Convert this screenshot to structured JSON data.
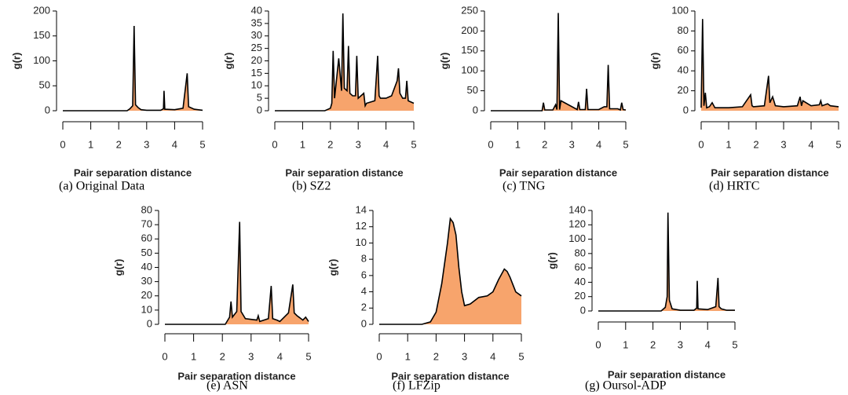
{
  "chart_data": [
    {
      "type": "area",
      "caption": "(a) Original Data",
      "ylabel": "g(r)",
      "xlabel": "Pair separation distance",
      "line_color": "#000000",
      "fill_color": "#f7a46c",
      "x": [
        0,
        2.3,
        2.4,
        2.5,
        2.55,
        2.6,
        2.7,
        2.8,
        3.0,
        3.5,
        3.6,
        3.62,
        3.65,
        4.0,
        4.3,
        4.45,
        4.5,
        4.7,
        5
      ],
      "values": [
        0,
        0,
        4,
        10,
        170,
        12,
        6,
        2,
        1,
        1,
        4,
        40,
        3,
        2,
        5,
        75,
        8,
        3,
        1
      ],
      "xlim": [
        0,
        5
      ],
      "xticks": [
        0,
        1,
        2,
        3,
        4,
        5
      ],
      "ylim": [
        0,
        200
      ],
      "yticks": [
        0,
        50,
        100,
        150,
        200
      ]
    },
    {
      "type": "area",
      "caption": "(b) SZ2",
      "ylabel": "g(r)",
      "xlabel": "Pair separation distance",
      "line_color": "#000000",
      "fill_color": "#f7a46c",
      "x": [
        0,
        1.8,
        2.0,
        2.05,
        2.1,
        2.15,
        2.3,
        2.4,
        2.45,
        2.5,
        2.6,
        2.65,
        2.7,
        2.8,
        2.9,
        2.95,
        3.0,
        3.2,
        3.25,
        3.3,
        3.6,
        3.7,
        3.75,
        3.8,
        4.0,
        4.2,
        4.4,
        4.45,
        4.5,
        4.6,
        4.7,
        4.75,
        4.8,
        5
      ],
      "values": [
        0,
        0,
        1,
        3,
        24,
        5,
        21,
        8,
        39,
        9,
        8,
        26,
        7,
        6,
        6,
        22,
        5,
        7,
        2,
        3,
        4,
        22,
        6,
        5,
        5,
        6,
        12,
        17,
        7,
        5,
        5,
        12,
        4,
        3
      ],
      "xlim": [
        0,
        5
      ],
      "xticks": [
        0,
        1,
        2,
        3,
        4,
        5
      ],
      "ylim": [
        0,
        40
      ],
      "yticks": [
        0,
        5,
        10,
        15,
        20,
        25,
        30,
        35,
        40
      ]
    },
    {
      "type": "area",
      "caption": "(c) TNG",
      "ylabel": "g(r)",
      "xlabel": "Pair separation distance",
      "line_color": "#000000",
      "fill_color": "#f7a46c",
      "x": [
        0,
        1.9,
        1.95,
        2.0,
        2.3,
        2.4,
        2.45,
        2.5,
        2.55,
        2.6,
        3.2,
        3.25,
        3.3,
        3.5,
        3.55,
        3.6,
        4.0,
        4.2,
        4.3,
        4.35,
        4.4,
        4.7,
        4.8,
        4.85,
        4.9,
        5
      ],
      "values": [
        0,
        0,
        20,
        2,
        2,
        15,
        3,
        245,
        3,
        25,
        3,
        22,
        3,
        3,
        55,
        3,
        3,
        10,
        10,
        115,
        5,
        5,
        2,
        20,
        3,
        2
      ],
      "xlim": [
        0,
        5
      ],
      "xticks": [
        0,
        1,
        2,
        3,
        4,
        5
      ],
      "ylim": [
        0,
        250
      ],
      "yticks": [
        0,
        50,
        100,
        150,
        200,
        250
      ]
    },
    {
      "type": "area",
      "caption": "(d) HRTC",
      "ylabel": "g(r)",
      "xlabel": "Pair separation distance",
      "line_color": "#000000",
      "fill_color": "#f7a46c",
      "x": [
        0,
        0.05,
        0.1,
        0.15,
        0.2,
        0.3,
        0.4,
        0.5,
        1.0,
        1.5,
        1.8,
        1.85,
        1.9,
        2.3,
        2.45,
        2.5,
        2.6,
        2.7,
        3.0,
        3.5,
        3.6,
        3.65,
        3.7,
        4.0,
        4.3,
        4.35,
        4.4,
        4.6,
        4.7,
        5
      ],
      "values": [
        3,
        92,
        5,
        18,
        3,
        4,
        8,
        3,
        3,
        4,
        16,
        5,
        4,
        5,
        35,
        8,
        14,
        5,
        4,
        5,
        14,
        5,
        10,
        5,
        6,
        10,
        5,
        7,
        5,
        4
      ],
      "xlim": [
        0,
        5
      ],
      "xticks": [
        0,
        1,
        2,
        3,
        4,
        5
      ],
      "ylim": [
        0,
        100
      ],
      "yticks": [
        0,
        20,
        40,
        60,
        80,
        100
      ]
    },
    {
      "type": "area",
      "caption": "(e) ASN",
      "ylabel": "g(r)",
      "xlabel": "Pair separation distance",
      "line_color": "#000000",
      "fill_color": "#f7a46c",
      "x": [
        0,
        2.1,
        2.25,
        2.3,
        2.35,
        2.5,
        2.6,
        2.65,
        2.8,
        3.2,
        3.25,
        3.3,
        3.6,
        3.7,
        3.75,
        3.9,
        4.0,
        4.3,
        4.45,
        4.5,
        4.6,
        4.8,
        4.9,
        5
      ],
      "values": [
        0,
        0,
        5,
        16,
        5,
        9,
        72,
        9,
        4,
        3,
        6,
        2,
        4,
        27,
        4,
        3,
        2,
        8,
        28,
        8,
        6,
        3,
        5,
        2
      ],
      "xlim": [
        0,
        5
      ],
      "xticks": [
        0,
        1,
        2,
        3,
        4,
        5
      ],
      "ylim": [
        0,
        80
      ],
      "yticks": [
        0,
        10,
        20,
        30,
        40,
        50,
        60,
        70,
        80
      ]
    },
    {
      "type": "area",
      "caption": "(f) LFZip",
      "ylabel": "g(r)",
      "xlabel": "Pair separation distance",
      "line_color": "#000000",
      "fill_color": "#f7a46c",
      "x": [
        0,
        1.5,
        1.8,
        2.0,
        2.2,
        2.4,
        2.5,
        2.6,
        2.7,
        2.8,
        2.9,
        3.0,
        3.2,
        3.5,
        3.8,
        4.0,
        4.2,
        4.4,
        4.5,
        4.6,
        4.8,
        5
      ],
      "values": [
        0,
        0,
        0.3,
        1.5,
        5,
        10,
        13,
        12.5,
        11,
        7,
        4,
        2.3,
        2.5,
        3.3,
        3.5,
        4,
        5.5,
        6.8,
        6.5,
        5.8,
        4,
        3.5
      ],
      "xlim": [
        0,
        5
      ],
      "xticks": [
        0,
        1,
        2,
        3,
        4,
        5
      ],
      "ylim": [
        0,
        14
      ],
      "yticks": [
        0,
        2,
        4,
        6,
        8,
        10,
        12,
        14
      ]
    },
    {
      "type": "area",
      "caption": "(g) Oursol-ADP",
      "ylabel": "g(r)",
      "xlabel": "Pair separation distance",
      "line_color": "#000000",
      "fill_color": "#f7a46c",
      "x": [
        0,
        2.3,
        2.45,
        2.52,
        2.55,
        2.6,
        2.7,
        3.0,
        3.5,
        3.6,
        3.62,
        3.65,
        4.0,
        4.3,
        4.38,
        4.42,
        4.5,
        4.7,
        5
      ],
      "values": [
        0,
        0,
        5,
        20,
        137,
        15,
        3,
        1,
        1,
        4,
        42,
        3,
        2,
        6,
        46,
        6,
        3,
        1,
        1
      ],
      "xlim": [
        0,
        5
      ],
      "xticks": [
        0,
        1,
        2,
        3,
        4,
        5
      ],
      "ylim": [
        0,
        140
      ],
      "yticks": [
        0,
        20,
        40,
        60,
        80,
        100,
        120,
        140
      ]
    }
  ]
}
